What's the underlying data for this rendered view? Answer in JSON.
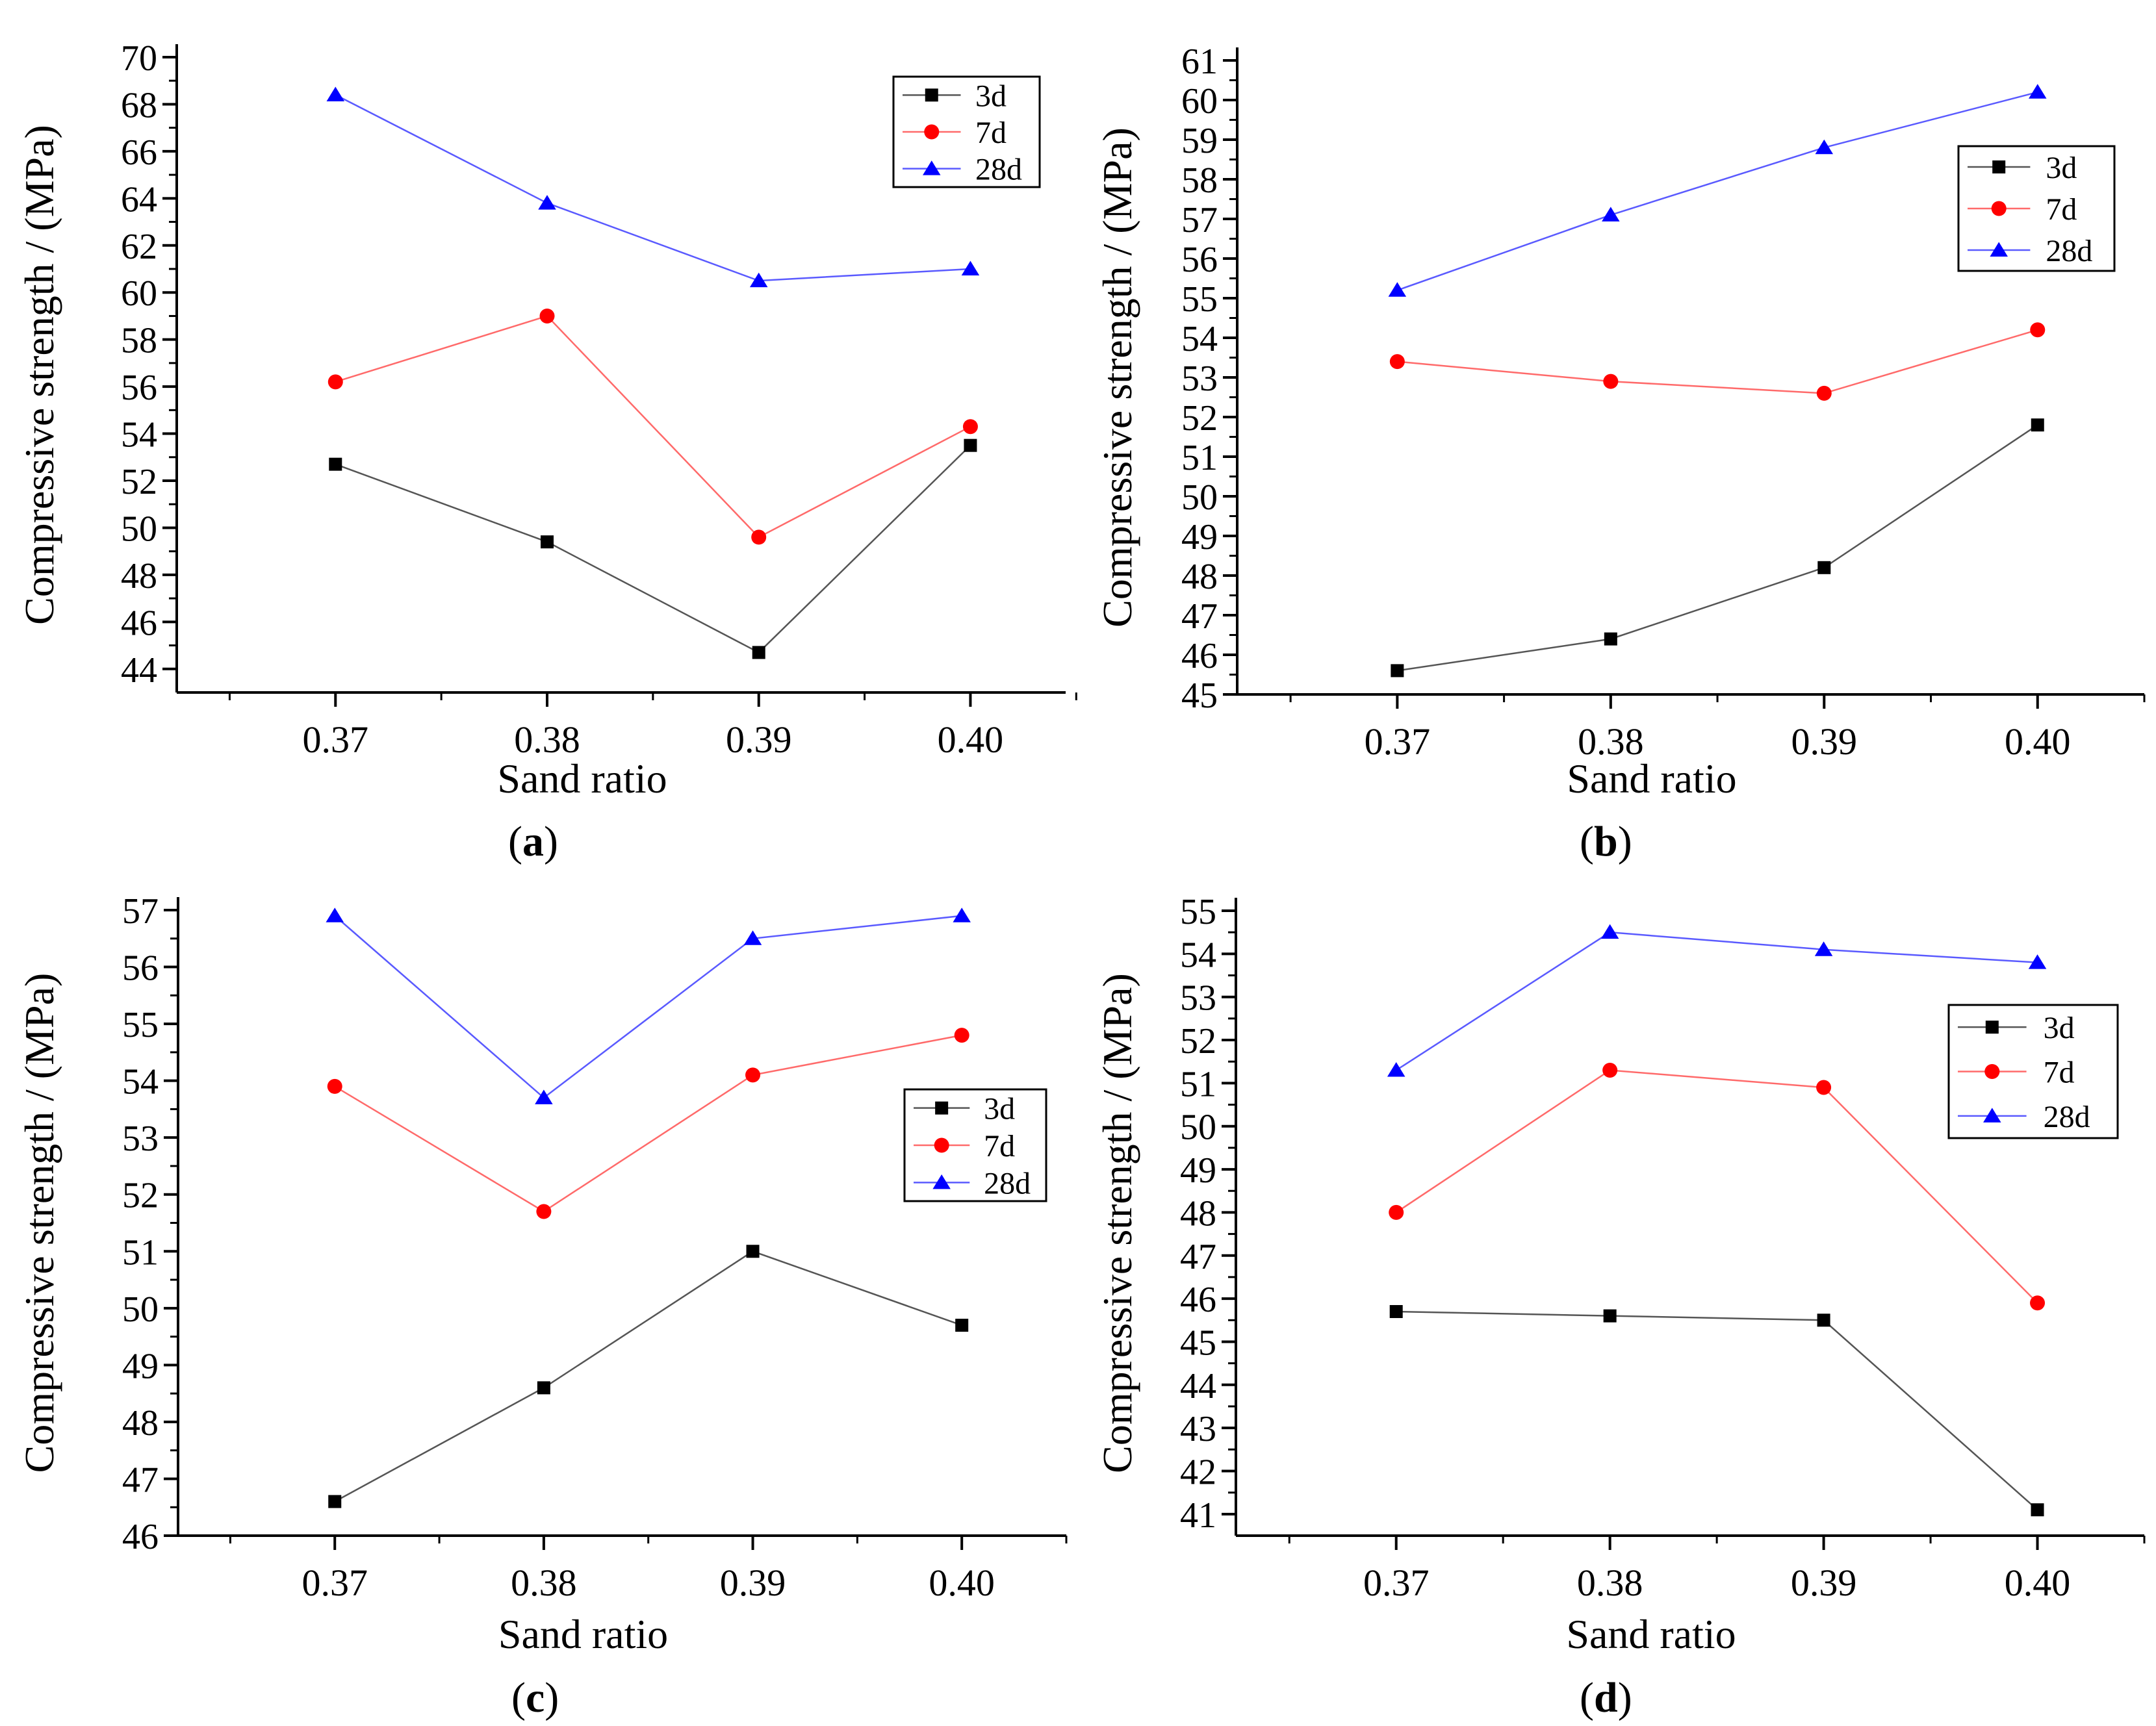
{
  "colors": {
    "s3d": "#000000",
    "s7d": "#ff0000",
    "s28d": "#0000ff",
    "line3d": "#555555",
    "line7d": "#ff6a6a",
    "line28d": "#5a5aff"
  },
  "chart_data": [
    {
      "id": "a",
      "type": "line",
      "caption_letter": "a",
      "xlabel": "Sand ratio",
      "ylabel": "Compressive strength / (MPa)",
      "x": [
        0.37,
        0.38,
        0.39,
        0.4
      ],
      "x_tick_labels": [
        "0.37",
        "0.38",
        "0.39",
        "0.40"
      ],
      "xlim": [
        0.3625,
        0.4045
      ],
      "ylim": [
        43,
        70
      ],
      "y_ticks": [
        44,
        46,
        48,
        50,
        52,
        54,
        56,
        58,
        60,
        62,
        64,
        66,
        68,
        70
      ],
      "y_tick_labels": [
        "44",
        "46",
        "48",
        "50",
        "52",
        "54",
        "56",
        "58",
        "60",
        "62",
        "64",
        "66",
        "68",
        "70"
      ],
      "legend_position": "top-right",
      "series": [
        {
          "name": "3d",
          "values": [
            52.7,
            49.4,
            44.7,
            53.5
          ]
        },
        {
          "name": "7d",
          "values": [
            56.2,
            59.0,
            49.6,
            54.3
          ]
        },
        {
          "name": "28d",
          "values": [
            68.4,
            63.8,
            60.5,
            61.0
          ]
        }
      ]
    },
    {
      "id": "b",
      "type": "line",
      "caption_letter": "b",
      "xlabel": "Sand ratio",
      "ylabel": "Compressive strength / (MPa)",
      "x": [
        0.37,
        0.38,
        0.39,
        0.4
      ],
      "x_tick_labels": [
        "0.37",
        "0.38",
        "0.39",
        "0.40"
      ],
      "xlim": [
        0.3625,
        0.405
      ],
      "ylim": [
        45,
        61
      ],
      "y_ticks": [
        45,
        46,
        47,
        48,
        49,
        50,
        51,
        52,
        53,
        54,
        55,
        56,
        57,
        58,
        59,
        60,
        61
      ],
      "y_tick_labels": [
        "45",
        "46",
        "47",
        "48",
        "49",
        "50",
        "51",
        "52",
        "53",
        "54",
        "55",
        "56",
        "57",
        "58",
        "59",
        "60",
        "61"
      ],
      "legend_position": "upper-right",
      "series": [
        {
          "name": "3d",
          "values": [
            45.6,
            46.4,
            48.2,
            51.8
          ]
        },
        {
          "name": "7d",
          "values": [
            53.4,
            52.9,
            52.6,
            54.2
          ]
        },
        {
          "name": "28d",
          "values": [
            55.2,
            57.1,
            58.8,
            60.2
          ]
        }
      ]
    },
    {
      "id": "c",
      "type": "line",
      "caption_letter": "c",
      "xlabel": "Sand ratio",
      "ylabel": "Compressive strength / (MPa)",
      "x": [
        0.37,
        0.38,
        0.39,
        0.4
      ],
      "x_tick_labels": [
        "0.37",
        "0.38",
        "0.39",
        "0.40"
      ],
      "xlim": [
        0.3625,
        0.405
      ],
      "ylim": [
        46,
        57
      ],
      "y_ticks": [
        46,
        47,
        48,
        49,
        50,
        51,
        52,
        53,
        54,
        55,
        56,
        57
      ],
      "y_tick_labels": [
        "46",
        "47",
        "48",
        "49",
        "50",
        "51",
        "52",
        "53",
        "54",
        "55",
        "56",
        "57"
      ],
      "legend_position": "middle-right",
      "series": [
        {
          "name": "3d",
          "values": [
            46.6,
            48.6,
            51.0,
            49.7
          ]
        },
        {
          "name": "7d",
          "values": [
            53.9,
            51.7,
            54.1,
            54.8
          ]
        },
        {
          "name": "28d",
          "values": [
            56.9,
            53.7,
            56.5,
            56.9
          ]
        }
      ]
    },
    {
      "id": "d",
      "type": "line",
      "caption_letter": "d",
      "xlabel": "Sand ratio",
      "ylabel": "Compressive strength / (MPa)",
      "x": [
        0.37,
        0.38,
        0.39,
        0.4
      ],
      "x_tick_labels": [
        "0.37",
        "0.38",
        "0.39",
        "0.40"
      ],
      "xlim": [
        0.3625,
        0.405
      ],
      "ylim": [
        40.5,
        55
      ],
      "y_ticks": [
        41,
        42,
        43,
        44,
        45,
        46,
        47,
        48,
        49,
        50,
        51,
        52,
        53,
        54,
        55
      ],
      "y_tick_labels": [
        "41",
        "42",
        "43",
        "44",
        "45",
        "46",
        "47",
        "48",
        "49",
        "50",
        "51",
        "52",
        "53",
        "54",
        "55"
      ],
      "legend_position": "upper-right",
      "series": [
        {
          "name": "3d",
          "values": [
            45.7,
            45.6,
            45.5,
            41.1
          ]
        },
        {
          "name": "7d",
          "values": [
            48.0,
            51.3,
            50.9,
            45.9
          ]
        },
        {
          "name": "28d",
          "values": [
            51.3,
            54.5,
            54.1,
            53.8
          ]
        }
      ]
    }
  ]
}
